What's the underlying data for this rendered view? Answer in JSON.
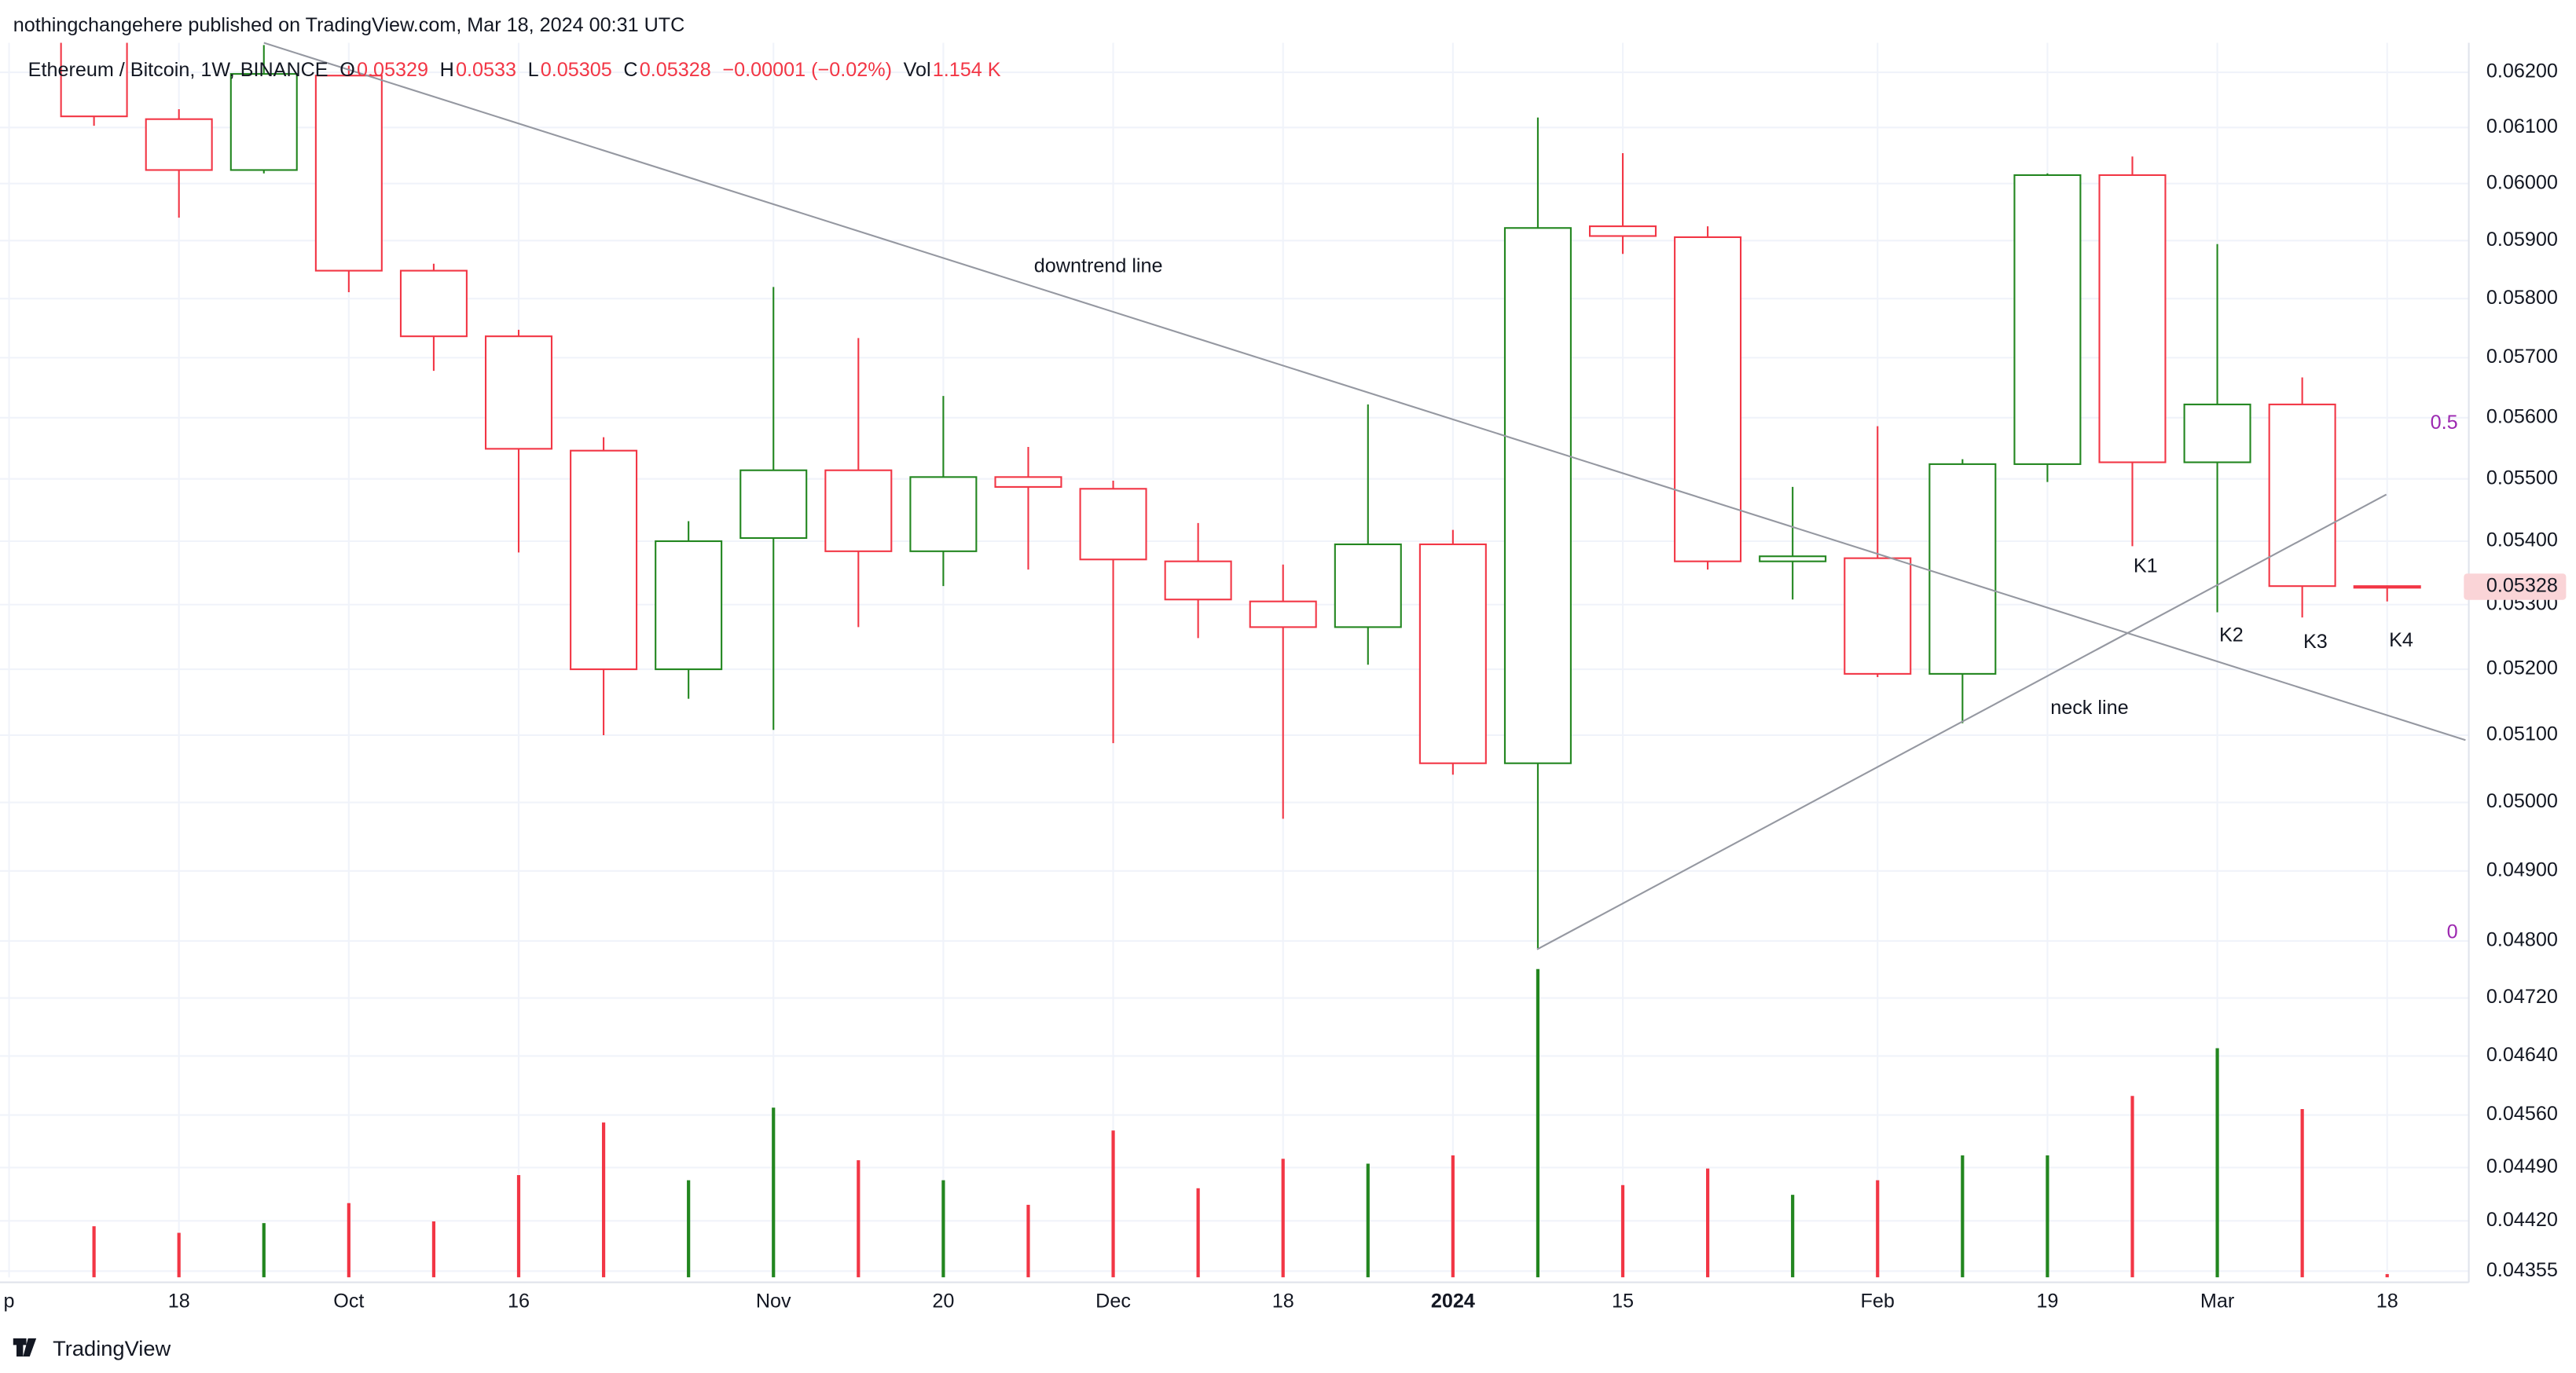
{
  "header": {
    "published": "nothingchangehere published on TradingView.com, Mar 18, 2024 00:31 UTC",
    "symbol": "Ethereum / Bitcoin, 1W, BINANCE",
    "ohlc_letters": [
      "O",
      "H",
      "L",
      "C"
    ],
    "change": "−0.00001 (−0.02%)",
    "vol_label": "Vol",
    "vol_value": "1.154 K"
  },
  "footer": {
    "brand": "TradingView"
  },
  "chart_data": {
    "type": "candlestick",
    "categories": [
      "p",
      null,
      "18",
      null,
      "Oct",
      null,
      "16",
      null,
      null,
      "Nov",
      null,
      "20",
      null,
      "Dec",
      null,
      "18",
      null,
      "2024",
      null,
      "15",
      null,
      null,
      "Feb",
      null,
      "19",
      null,
      "Mar",
      null,
      "18"
    ],
    "open": [
      null,
      0.0628,
      0.06115,
      0.06024,
      0.06194,
      0.05848,
      0.05736,
      0.05546,
      0.052,
      0.05405,
      0.05514,
      0.05384,
      0.05503,
      0.05484,
      0.05368,
      0.05305,
      0.05265,
      0.05395,
      0.05058,
      0.05925,
      0.05906,
      0.05368,
      0.05373,
      0.05193,
      0.05524,
      0.06015,
      0.05527,
      0.05622,
      0.05329
    ],
    "high": [
      null,
      0.0632,
      0.06133,
      0.0625,
      0.06212,
      0.0586,
      0.05747,
      0.05568,
      0.05432,
      0.0582,
      0.05733,
      0.05636,
      0.05552,
      0.05497,
      0.05429,
      0.05363,
      0.05622,
      0.05418,
      0.06118,
      0.06054,
      0.05925,
      0.05487,
      0.05586,
      0.05532,
      0.06018,
      0.06048,
      0.05894,
      0.05667,
      0.0533
    ],
    "low": [
      null,
      0.06103,
      0.0594,
      0.06018,
      0.05811,
      0.05678,
      0.05382,
      0.051,
      0.05155,
      0.05108,
      0.05265,
      0.05329,
      0.05355,
      0.05088,
      0.05248,
      0.04976,
      0.05207,
      0.05041,
      0.0479,
      0.05877,
      0.05355,
      0.05308,
      0.05188,
      0.05118,
      0.05495,
      0.05392,
      0.05288,
      0.0528,
      0.05305
    ],
    "close": [
      null,
      0.0612,
      0.06024,
      0.06197,
      0.05848,
      0.05736,
      0.05549,
      0.052,
      0.054,
      0.05514,
      0.05384,
      0.05503,
      0.05487,
      0.05371,
      0.05308,
      0.05265,
      0.05395,
      0.05058,
      0.05922,
      0.05908,
      0.05368,
      0.05376,
      0.05193,
      0.05524,
      0.06015,
      0.05527,
      0.05622,
      0.05329,
      0.05328
    ],
    "volume": [
      null,
      17.9,
      15.6,
      19.0,
      26.0,
      19.6,
      35.8,
      54.2,
      34.0,
      59.4,
      41.0,
      34.0,
      25.4,
      51.4,
      31.2,
      41.5,
      39.8,
      42.7,
      107.9,
      32.3,
      38.1,
      28.9,
      34.0,
      42.7,
      42.7,
      63.5,
      80.2,
      58.9,
      1.154
    ],
    "volume_lim": [
      0,
      432
    ],
    "up_color": "#22861f",
    "down_color": "#f23645",
    "log_scale": true,
    "grid": true,
    "ylim": [
      0.04347,
      0.06254
    ],
    "yticks": [
      {
        "value": 0.062,
        "label": "0.06200"
      },
      {
        "value": 0.061,
        "label": "0.06100"
      },
      {
        "value": 0.06,
        "label": "0.06000"
      },
      {
        "value": 0.059,
        "label": "0.05900"
      },
      {
        "value": 0.058,
        "label": "0.05800"
      },
      {
        "value": 0.057,
        "label": "0.05700"
      },
      {
        "value": 0.056,
        "label": "0.05600"
      },
      {
        "value": 0.055,
        "label": "0.05500"
      },
      {
        "value": 0.054,
        "label": "0.05400"
      },
      {
        "value": 0.053,
        "label": "0.05300"
      },
      {
        "value": 0.052,
        "label": "0.05200"
      },
      {
        "value": 0.051,
        "label": "0.05100"
      },
      {
        "value": 0.05,
        "label": "0.05000"
      },
      {
        "value": 0.049,
        "label": "0.04900"
      },
      {
        "value": 0.048,
        "label": "0.04800"
      },
      {
        "value": 0.0472,
        "label": "0.04720"
      },
      {
        "value": 0.0464,
        "label": "0.04640"
      },
      {
        "value": 0.0456,
        "label": "0.04560"
      },
      {
        "value": 0.0449,
        "label": "0.04490"
      },
      {
        "value": 0.0442,
        "label": "0.04420"
      },
      {
        "value": 0.04355,
        "label": "0.04355"
      }
    ],
    "annotations": [
      "downtrend line",
      "neck line",
      "K1",
      "K2",
      "K3",
      "K4"
    ],
    "fib_levels": [
      0.5,
      0
    ]
  }
}
